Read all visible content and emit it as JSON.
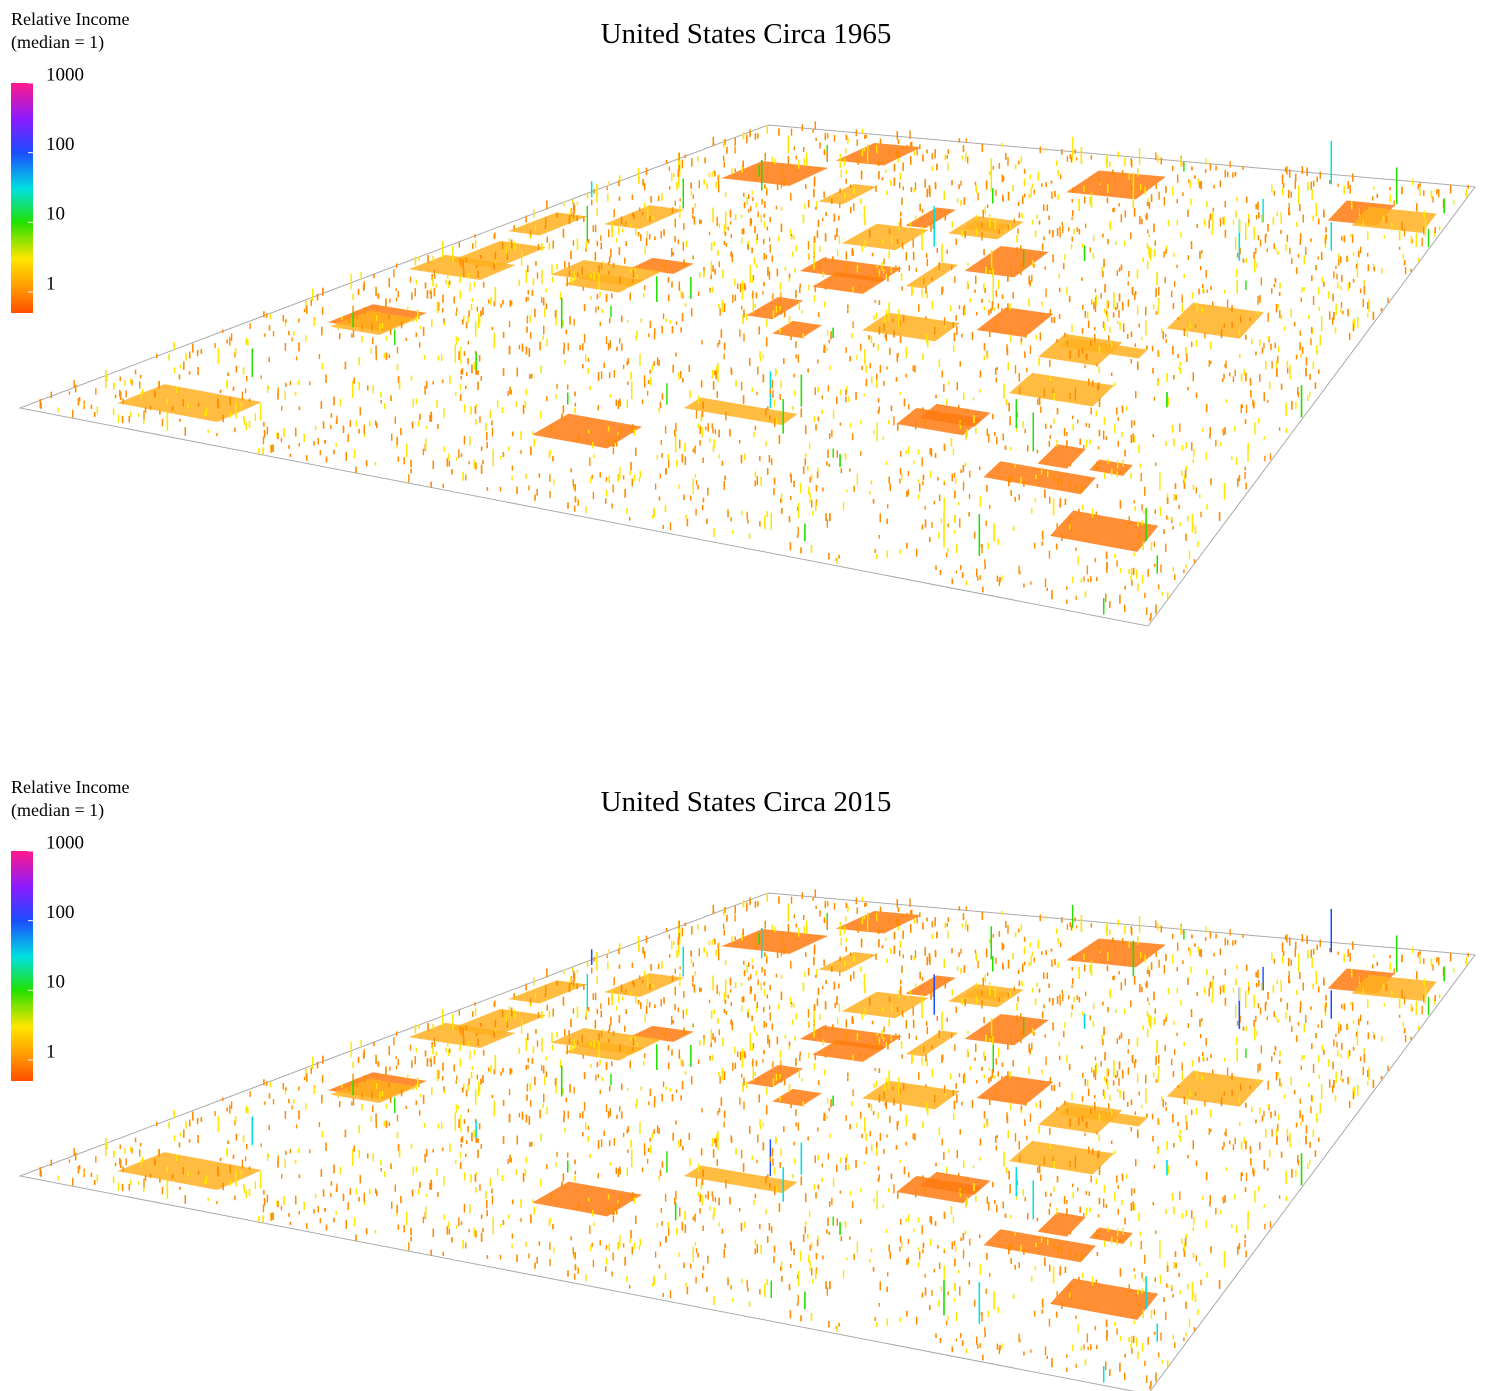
{
  "chart_data": [
    {
      "type": "surface3d",
      "title": "United States Circa 1965",
      "colorbar_title": [
        "Relative Income",
        "(median = 1)"
      ],
      "clim": [
        0.5,
        1000
      ],
      "cticks": [
        1,
        10,
        100,
        1000
      ],
      "log": true,
      "colorscale": [
        {
          "value": 0.5,
          "color": "#ff4d00"
        },
        {
          "value": 1,
          "color": "#ff8c00"
        },
        {
          "value": 3,
          "color": "#ffe600"
        },
        {
          "value": 10,
          "color": "#22e000"
        },
        {
          "value": 30,
          "color": "#00e0e0"
        },
        {
          "value": 100,
          "color": "#1a4dff"
        },
        {
          "value": 300,
          "color": "#8a1aff"
        },
        {
          "value": 1000,
          "color": "#ff1a8c"
        }
      ]
    },
    {
      "type": "surface3d",
      "title": "United States Circa 2015",
      "colorbar_title": [
        "Relative Income",
        "(median = 1)"
      ],
      "clim": [
        0.5,
        1000
      ],
      "cticks": [
        1,
        10,
        100,
        1000
      ],
      "log": true,
      "colorscale": [
        {
          "value": 0.5,
          "color": "#ff4d00"
        },
        {
          "value": 1,
          "color": "#ff8c00"
        },
        {
          "value": 3,
          "color": "#ffe600"
        },
        {
          "value": 10,
          "color": "#22e000"
        },
        {
          "value": 30,
          "color": "#00e0e0"
        },
        {
          "value": 100,
          "color": "#1a4dff"
        },
        {
          "value": 300,
          "color": "#8a1aff"
        },
        {
          "value": 1000,
          "color": "#ff1a8c"
        }
      ]
    }
  ]
}
